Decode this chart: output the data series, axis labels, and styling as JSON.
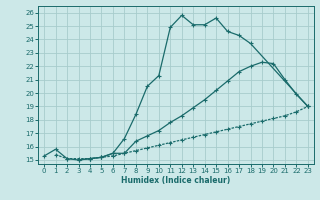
{
  "xlabel": "Humidex (Indice chaleur)",
  "ylabel": "",
  "bg_color": "#cce8e8",
  "grid_color": "#a8cccc",
  "line_color": "#1a6b6b",
  "xlim": [
    -0.5,
    23.5
  ],
  "ylim": [
    14.7,
    26.5
  ],
  "xticks": [
    0,
    1,
    2,
    3,
    4,
    5,
    6,
    7,
    8,
    9,
    10,
    11,
    12,
    13,
    14,
    15,
    16,
    17,
    18,
    19,
    20,
    21,
    22,
    23
  ],
  "yticks": [
    15,
    16,
    17,
    18,
    19,
    20,
    21,
    22,
    23,
    24,
    25,
    26
  ],
  "line1_x": [
    0,
    1,
    2,
    3,
    4,
    5,
    6,
    7,
    8,
    9,
    10,
    11,
    12,
    13,
    14,
    15,
    16,
    17,
    18,
    23
  ],
  "line1_y": [
    15.3,
    15.8,
    15.1,
    15.0,
    15.1,
    15.2,
    15.5,
    16.6,
    18.4,
    20.5,
    21.3,
    24.9,
    25.8,
    25.1,
    25.1,
    25.6,
    24.6,
    24.3,
    23.7,
    19.0
  ],
  "line2_x": [
    3,
    4,
    5,
    6,
    7,
    8,
    9,
    10,
    11,
    12,
    13,
    14,
    15,
    16,
    17,
    18,
    19,
    20,
    21,
    22,
    23
  ],
  "line2_y": [
    15.0,
    15.1,
    15.2,
    15.5,
    15.5,
    16.4,
    16.8,
    17.2,
    17.8,
    18.3,
    18.9,
    19.5,
    20.2,
    20.9,
    21.6,
    22.0,
    22.3,
    22.2,
    21.0,
    19.9,
    19.0
  ],
  "line3_x": [
    1,
    2,
    3,
    4,
    5,
    6,
    7,
    8,
    9,
    10,
    11,
    12,
    13,
    14,
    15,
    16,
    17,
    18,
    19,
    20,
    21,
    22,
    23
  ],
  "line3_y": [
    15.4,
    15.1,
    15.1,
    15.1,
    15.2,
    15.3,
    15.5,
    15.7,
    15.9,
    16.1,
    16.3,
    16.5,
    16.7,
    16.9,
    17.1,
    17.3,
    17.5,
    17.7,
    17.9,
    18.1,
    18.3,
    18.6,
    19.0
  ]
}
